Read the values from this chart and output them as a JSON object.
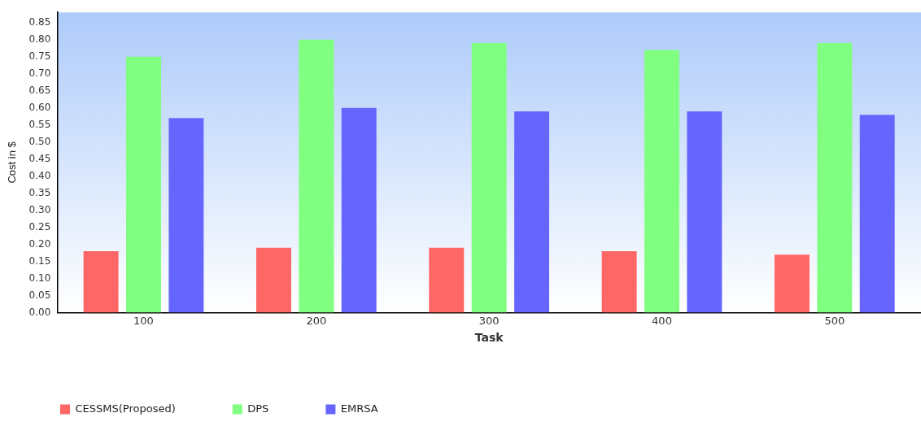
{
  "chart_data": {
    "type": "bar",
    "xlabel": "Task",
    "ylabel": "Cost in $",
    "categories": [
      "100",
      "200",
      "300",
      "400",
      "500"
    ],
    "series": [
      {
        "name": "CESSMS(Proposed)",
        "color": "#ff6666",
        "values": [
          0.18,
          0.19,
          0.19,
          0.18,
          0.17
        ]
      },
      {
        "name": "DPS",
        "color": "#80ff80",
        "values": [
          0.75,
          0.8,
          0.79,
          0.77,
          0.79
        ]
      },
      {
        "name": "EMRSA",
        "color": "#6666ff",
        "values": [
          0.57,
          0.6,
          0.59,
          0.59,
          0.58
        ]
      }
    ],
    "ylim": [
      0,
      0.88
    ],
    "yticks": [
      {
        "value": 0,
        "label": "0.00"
      },
      {
        "value": 0.05,
        "label": "0.05"
      },
      {
        "value": 0.1,
        "label": "0.10"
      },
      {
        "value": 0.15,
        "label": "0.15"
      },
      {
        "value": 0.2,
        "label": "0.20"
      },
      {
        "value": 0.25,
        "label": "0.25"
      },
      {
        "value": 0.3,
        "label": "0.30"
      },
      {
        "value": 0.35,
        "label": "0.35"
      },
      {
        "value": 0.4,
        "label": "0.40"
      },
      {
        "value": 0.45,
        "label": "0.45"
      },
      {
        "value": 0.5,
        "label": "0.50"
      },
      {
        "value": 0.55,
        "label": "0.55"
      },
      {
        "value": 0.6,
        "label": "0.60"
      },
      {
        "value": 0.65,
        "label": "0.65"
      },
      {
        "value": 0.7,
        "label": "0.70"
      },
      {
        "value": 0.75,
        "label": "0.75"
      },
      {
        "value": 0.8,
        "label": "0.80"
      },
      {
        "value": 0.85,
        "label": "0.85"
      }
    ],
    "grid": false,
    "legend": "bottom left"
  }
}
